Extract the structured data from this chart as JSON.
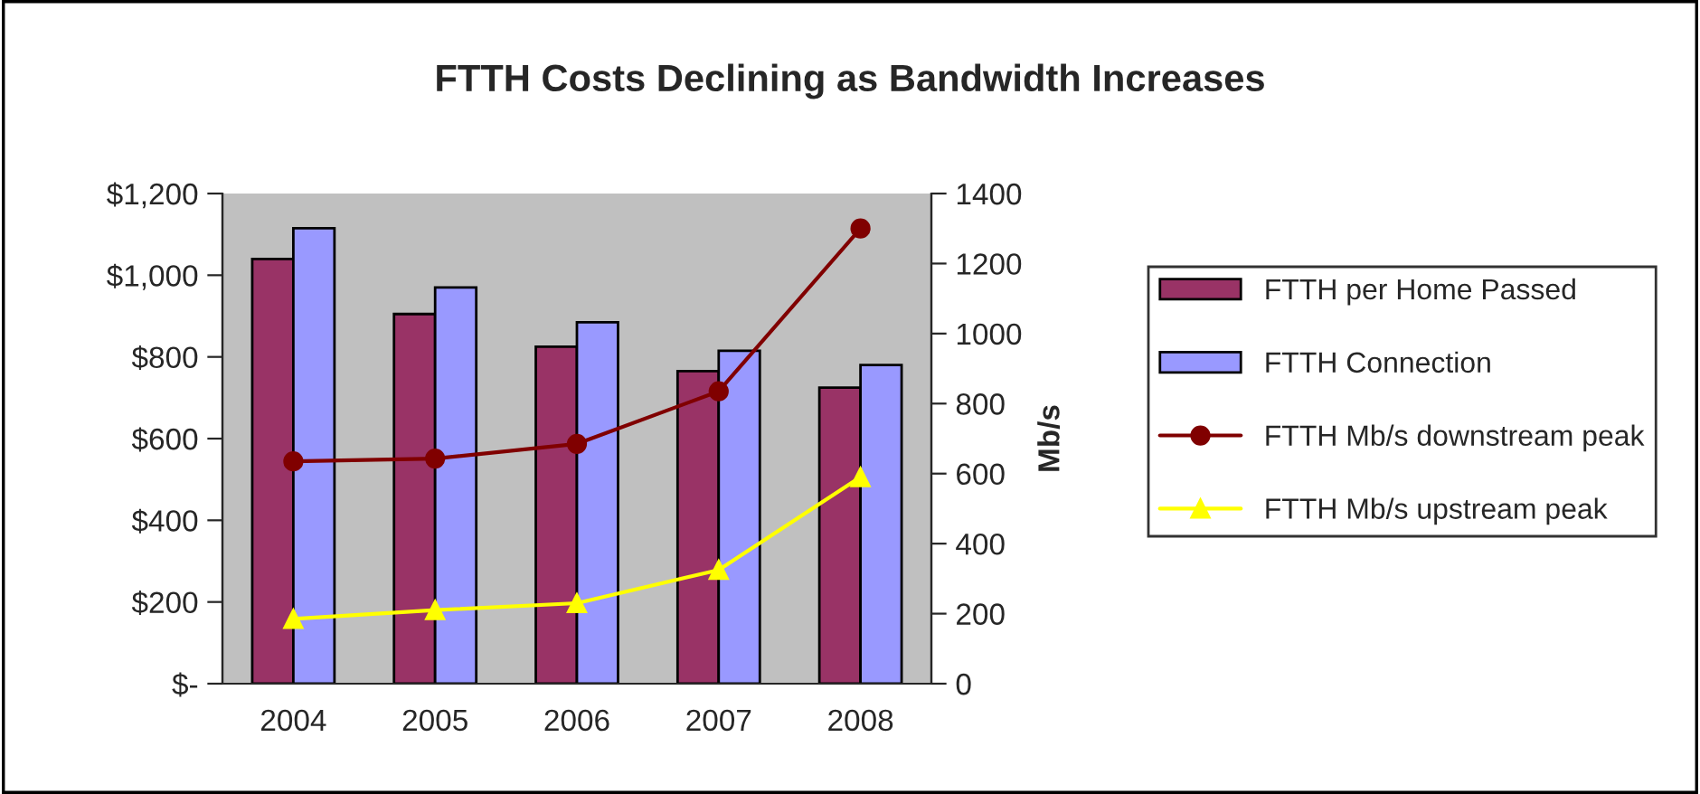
{
  "chart_data": {
    "type": "bar",
    "title": "FTTH Costs Declining as Bandwidth Increases",
    "y2label": "Mb/s",
    "categories": [
      "2004",
      "2005",
      "2006",
      "2007",
      "2008"
    ],
    "series": [
      {
        "name": "FTTH per Home Passed",
        "color": "#993366",
        "values": [
          1040,
          905,
          825,
          765,
          725
        ]
      },
      {
        "name": "FTTH Connection",
        "color": "#9999ff",
        "values": [
          1115,
          970,
          885,
          815,
          780
        ]
      },
      {
        "name": "FTTH Mb/s downstream peak",
        "type": "line",
        "axis": "y2",
        "marker": "circle",
        "color": "#800000",
        "values": [
          635,
          643,
          685,
          835,
          1300
        ]
      },
      {
        "name": "FTTH Mb/s upstream peak",
        "type": "line",
        "axis": "y2",
        "marker": "triangle",
        "color": "#ffff00",
        "values": [
          185,
          210,
          230,
          325,
          590
        ]
      }
    ],
    "ylim": [
      0,
      1200
    ],
    "yticks": [
      {
        "value": 0,
        "label": "$-"
      },
      {
        "value": 200,
        "label": "$200"
      },
      {
        "value": 400,
        "label": "$400"
      },
      {
        "value": 600,
        "label": "$600"
      },
      {
        "value": 800,
        "label": "$800"
      },
      {
        "value": 1000,
        "label": "$1,000"
      },
      {
        "value": 1200,
        "label": "$1,200"
      }
    ],
    "y2lim": [
      0,
      1400
    ],
    "y2ticks": [
      0,
      200,
      400,
      600,
      800,
      1000,
      1200,
      1400
    ],
    "grid": false,
    "legend": "right"
  }
}
